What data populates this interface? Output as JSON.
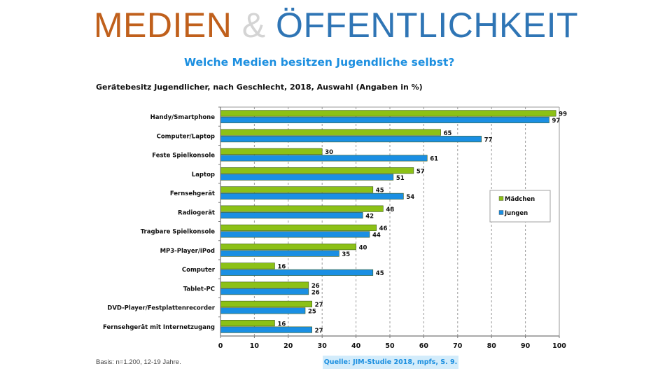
{
  "slide": {
    "title_part1": "MEDIEN",
    "title_amp": "&",
    "title_part2": "ÖFFENTLICHKEIT"
  },
  "chart_heading": "Welche Medien besitzen Jugendliche selbst?",
  "colors": {
    "maedchen": "#8cc116",
    "jungen": "#1a8fe3",
    "title_orange": "#c0601c",
    "title_blue": "#2f75b5",
    "heading_blue": "#1c8fe0"
  },
  "chart_data": {
    "type": "bar",
    "orientation": "horizontal",
    "title": "Gerätebesitz Jugendlicher, nach Geschlecht, 2018, Auswahl (Angaben in %)",
    "xlabel": "",
    "ylabel": "",
    "xlim": [
      0,
      100
    ],
    "x_ticks": [
      "0",
      "10",
      "20",
      "30",
      "40",
      "50",
      "60",
      "70",
      "80",
      "90",
      "100"
    ],
    "grid": "vertical dashed",
    "legend_position": "right",
    "categories": [
      "Handy/Smartphone",
      "Computer/Laptop",
      "Feste Spielkonsole",
      "Laptop",
      "Fernsehgerät",
      "Radiogerät",
      "Tragbare Spielkonsole",
      "MP3-Player/iPod",
      "Computer",
      "Tablet-PC",
      "DVD-Player/Festplattenrecorder",
      "Fernsehgerät mit Internetzugang"
    ],
    "series": [
      {
        "name": "Mädchen",
        "color": "#8cc116",
        "values": [
          99,
          65,
          30,
          57,
          45,
          48,
          46,
          40,
          16,
          26,
          27,
          16
        ]
      },
      {
        "name": "Jungen",
        "color": "#1a8fe3",
        "values": [
          97,
          77,
          61,
          51,
          54,
          42,
          44,
          35,
          45,
          26,
          25,
          27
        ]
      }
    ]
  },
  "footer": {
    "basis": "Basis: n=1.200, 12-19 Jahre.",
    "source": "Quelle: JIM-Studie 2018, mpfs, S. 9."
  }
}
